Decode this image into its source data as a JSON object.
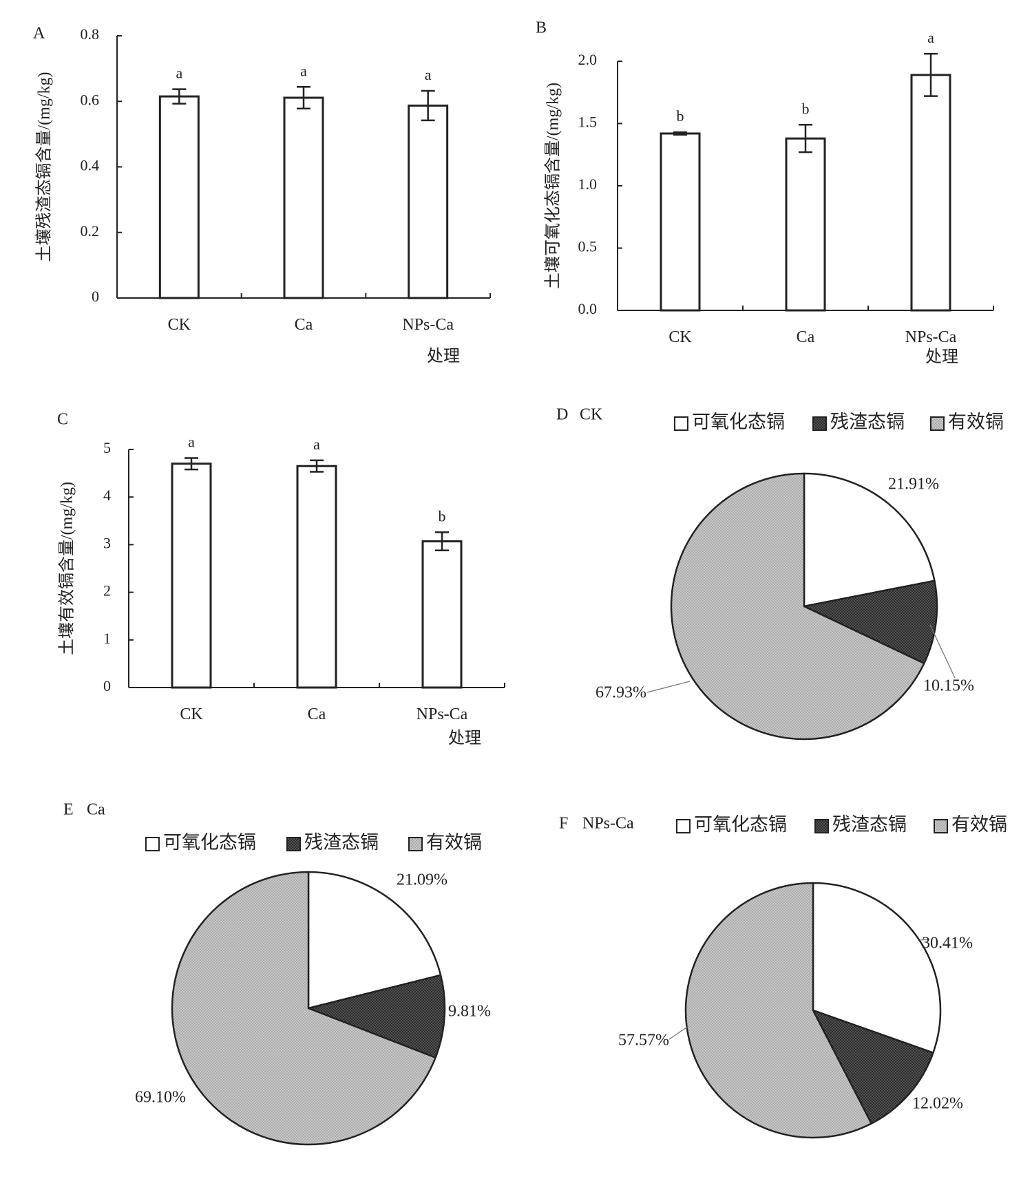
{
  "chart_data": [
    {
      "panel": "A",
      "type": "bar",
      "ylabel": "土壤残渣态镉含量/(mg/kg)",
      "xlabel": "处理",
      "categories": [
        "CK",
        "Ca",
        "NPs-Ca"
      ],
      "values": [
        0.615,
        0.611,
        0.587
      ],
      "errors": [
        0.022,
        0.033,
        0.045
      ],
      "significance": [
        "a",
        "a",
        "a"
      ],
      "ylim": [
        0,
        0.8
      ],
      "yticks": [
        "0",
        "0.2",
        "0.4",
        "0.6",
        "0.8"
      ]
    },
    {
      "panel": "B",
      "type": "bar",
      "ylabel": "土壤可氧化态镉含量/(mg/kg)",
      "xlabel": "处理",
      "categories": [
        "CK",
        "Ca",
        "NPs-Ca"
      ],
      "values": [
        1.42,
        1.38,
        1.89
      ],
      "errors": [
        0.01,
        0.11,
        0.17
      ],
      "significance": [
        "b",
        "b",
        "a"
      ],
      "ylim": [
        0,
        2.0
      ],
      "yticks": [
        "0.0",
        "0.5",
        "1.0",
        "1.5",
        "2.0"
      ]
    },
    {
      "panel": "C",
      "type": "bar",
      "ylabel": "土壤有效镉含量/(mg/kg)",
      "xlabel": "处理",
      "categories": [
        "CK",
        "Ca",
        "NPs-Ca"
      ],
      "values": [
        4.7,
        4.65,
        3.07
      ],
      "errors": [
        0.12,
        0.12,
        0.19
      ],
      "significance": [
        "a",
        "a",
        "b"
      ],
      "ylim": [
        0,
        5
      ],
      "yticks": [
        "0",
        "1",
        "2",
        "3",
        "4",
        "5"
      ]
    },
    {
      "panel": "D",
      "type": "pie",
      "title": "CK",
      "legend": [
        "可氧化态镉",
        "残渣态镉",
        "有效镉"
      ],
      "values": [
        21.91,
        10.15,
        67.93
      ],
      "labels": [
        "21.91%",
        "10.15%",
        "67.93%"
      ]
    },
    {
      "panel": "E",
      "type": "pie",
      "title": "Ca",
      "legend": [
        "可氧化态镉",
        "残渣态镉",
        "有效镉"
      ],
      "values": [
        21.09,
        9.81,
        69.1
      ],
      "labels": [
        "21.09%",
        "9.81%",
        "69.10%"
      ]
    },
    {
      "panel": "F",
      "type": "pie",
      "title": "NPs-Ca",
      "legend": [
        "可氧化态镉",
        "残渣态镉",
        "有效镉"
      ],
      "values": [
        30.41,
        12.02,
        57.57
      ],
      "labels": [
        "30.41%",
        "12.02%",
        "57.57%"
      ]
    }
  ],
  "colors": {
    "axis": "#222222",
    "bar_fill": "#ffffff",
    "slice_oxidizable": "#ffffff",
    "slice_residual": "#3a3a3a",
    "slice_available": "#bdbdbd"
  }
}
